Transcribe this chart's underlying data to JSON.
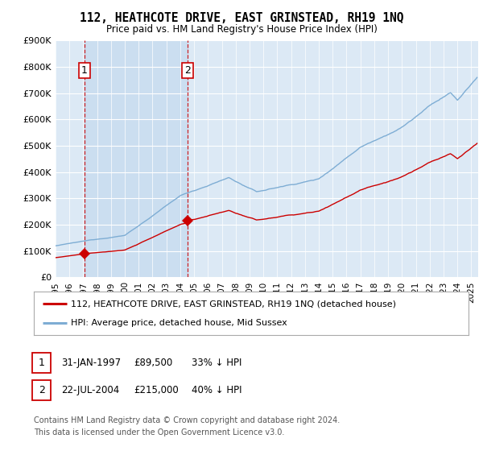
{
  "title": "112, HEATHCOTE DRIVE, EAST GRINSTEAD, RH19 1NQ",
  "subtitle": "Price paid vs. HM Land Registry's House Price Index (HPI)",
  "ylim": [
    0,
    900000
  ],
  "yticks": [
    0,
    100000,
    200000,
    300000,
    400000,
    500000,
    600000,
    700000,
    800000,
    900000
  ],
  "ytick_labels": [
    "£0",
    "£100K",
    "£200K",
    "£300K",
    "£400K",
    "£500K",
    "£600K",
    "£700K",
    "£800K",
    "£900K"
  ],
  "xlim_start": 1995.0,
  "xlim_end": 2025.5,
  "xtick_years": [
    1995,
    1996,
    1997,
    1998,
    1999,
    2000,
    2001,
    2002,
    2003,
    2004,
    2005,
    2006,
    2007,
    2008,
    2009,
    2010,
    2011,
    2012,
    2013,
    2014,
    2015,
    2016,
    2017,
    2018,
    2019,
    2020,
    2021,
    2022,
    2023,
    2024,
    2025
  ],
  "xtick_labels": [
    "1995",
    "1996",
    "1997",
    "1998",
    "1999",
    "2000",
    "2001",
    "2002",
    "2003",
    "2004",
    "2005",
    "2006",
    "2007",
    "2008",
    "2009",
    "2010",
    "2011",
    "2012",
    "2013",
    "2014",
    "2015",
    "2016",
    "2017",
    "2018",
    "2019",
    "2020",
    "2021",
    "2022",
    "2023",
    "2024",
    "2025"
  ],
  "bg_color": "#dce9f5",
  "shade_color": "#c8ddf0",
  "red_line_color": "#cc0000",
  "blue_line_color": "#7eadd4",
  "transaction1_x": 1997.08,
  "transaction1_y": 89500,
  "transaction1_label": "1",
  "transaction1_date": "31-JAN-1997",
  "transaction1_price": "£89,500",
  "transaction1_hpi": "33% ↓ HPI",
  "transaction2_x": 2004.55,
  "transaction2_y": 215000,
  "transaction2_label": "2",
  "transaction2_date": "22-JUL-2004",
  "transaction2_price": "£215,000",
  "transaction2_hpi": "40% ↓ HPI",
  "legend_line1": "112, HEATHCOTE DRIVE, EAST GRINSTEAD, RH19 1NQ (detached house)",
  "legend_line2": "HPI: Average price, detached house, Mid Sussex",
  "footer": "Contains HM Land Registry data © Crown copyright and database right 2024.\nThis data is licensed under the Open Government Licence v3.0."
}
